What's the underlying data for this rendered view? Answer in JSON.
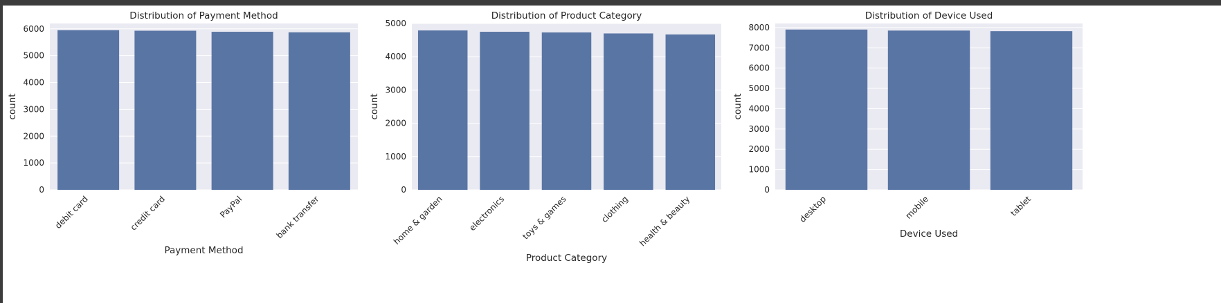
{
  "chart_data": [
    {
      "type": "bar",
      "title": "Distribution of Payment Method",
      "xlabel": "Payment Method",
      "ylabel": "count",
      "categories": [
        "debit card",
        "credit card",
        "PayPal",
        "bank transfer"
      ],
      "values": [
        5950,
        5930,
        5890,
        5870
      ],
      "ylim": [
        0,
        6200
      ],
      "yticks": [
        0,
        1000,
        2000,
        3000,
        4000,
        5000,
        6000
      ],
      "color": "#5975a4"
    },
    {
      "type": "bar",
      "title": "Distribution of Product Category",
      "xlabel": "Product Category",
      "ylabel": "count",
      "categories": [
        "home & garden",
        "electronics",
        "toys & games",
        "clothing",
        "health & beauty"
      ],
      "values": [
        4790,
        4750,
        4730,
        4700,
        4670
      ],
      "ylim": [
        0,
        5000
      ],
      "yticks": [
        0,
        1000,
        2000,
        3000,
        4000,
        5000
      ],
      "color": "#5975a4"
    },
    {
      "type": "bar",
      "title": "Distribution of Device Used",
      "xlabel": "Device Used",
      "ylabel": "count",
      "categories": [
        "desktop",
        "mobile",
        "tablet"
      ],
      "values": [
        7900,
        7850,
        7820
      ],
      "ylim": [
        0,
        8200
      ],
      "yticks": [
        0,
        1000,
        2000,
        3000,
        4000,
        5000,
        6000,
        7000,
        8000
      ],
      "color": "#5975a4"
    }
  ]
}
